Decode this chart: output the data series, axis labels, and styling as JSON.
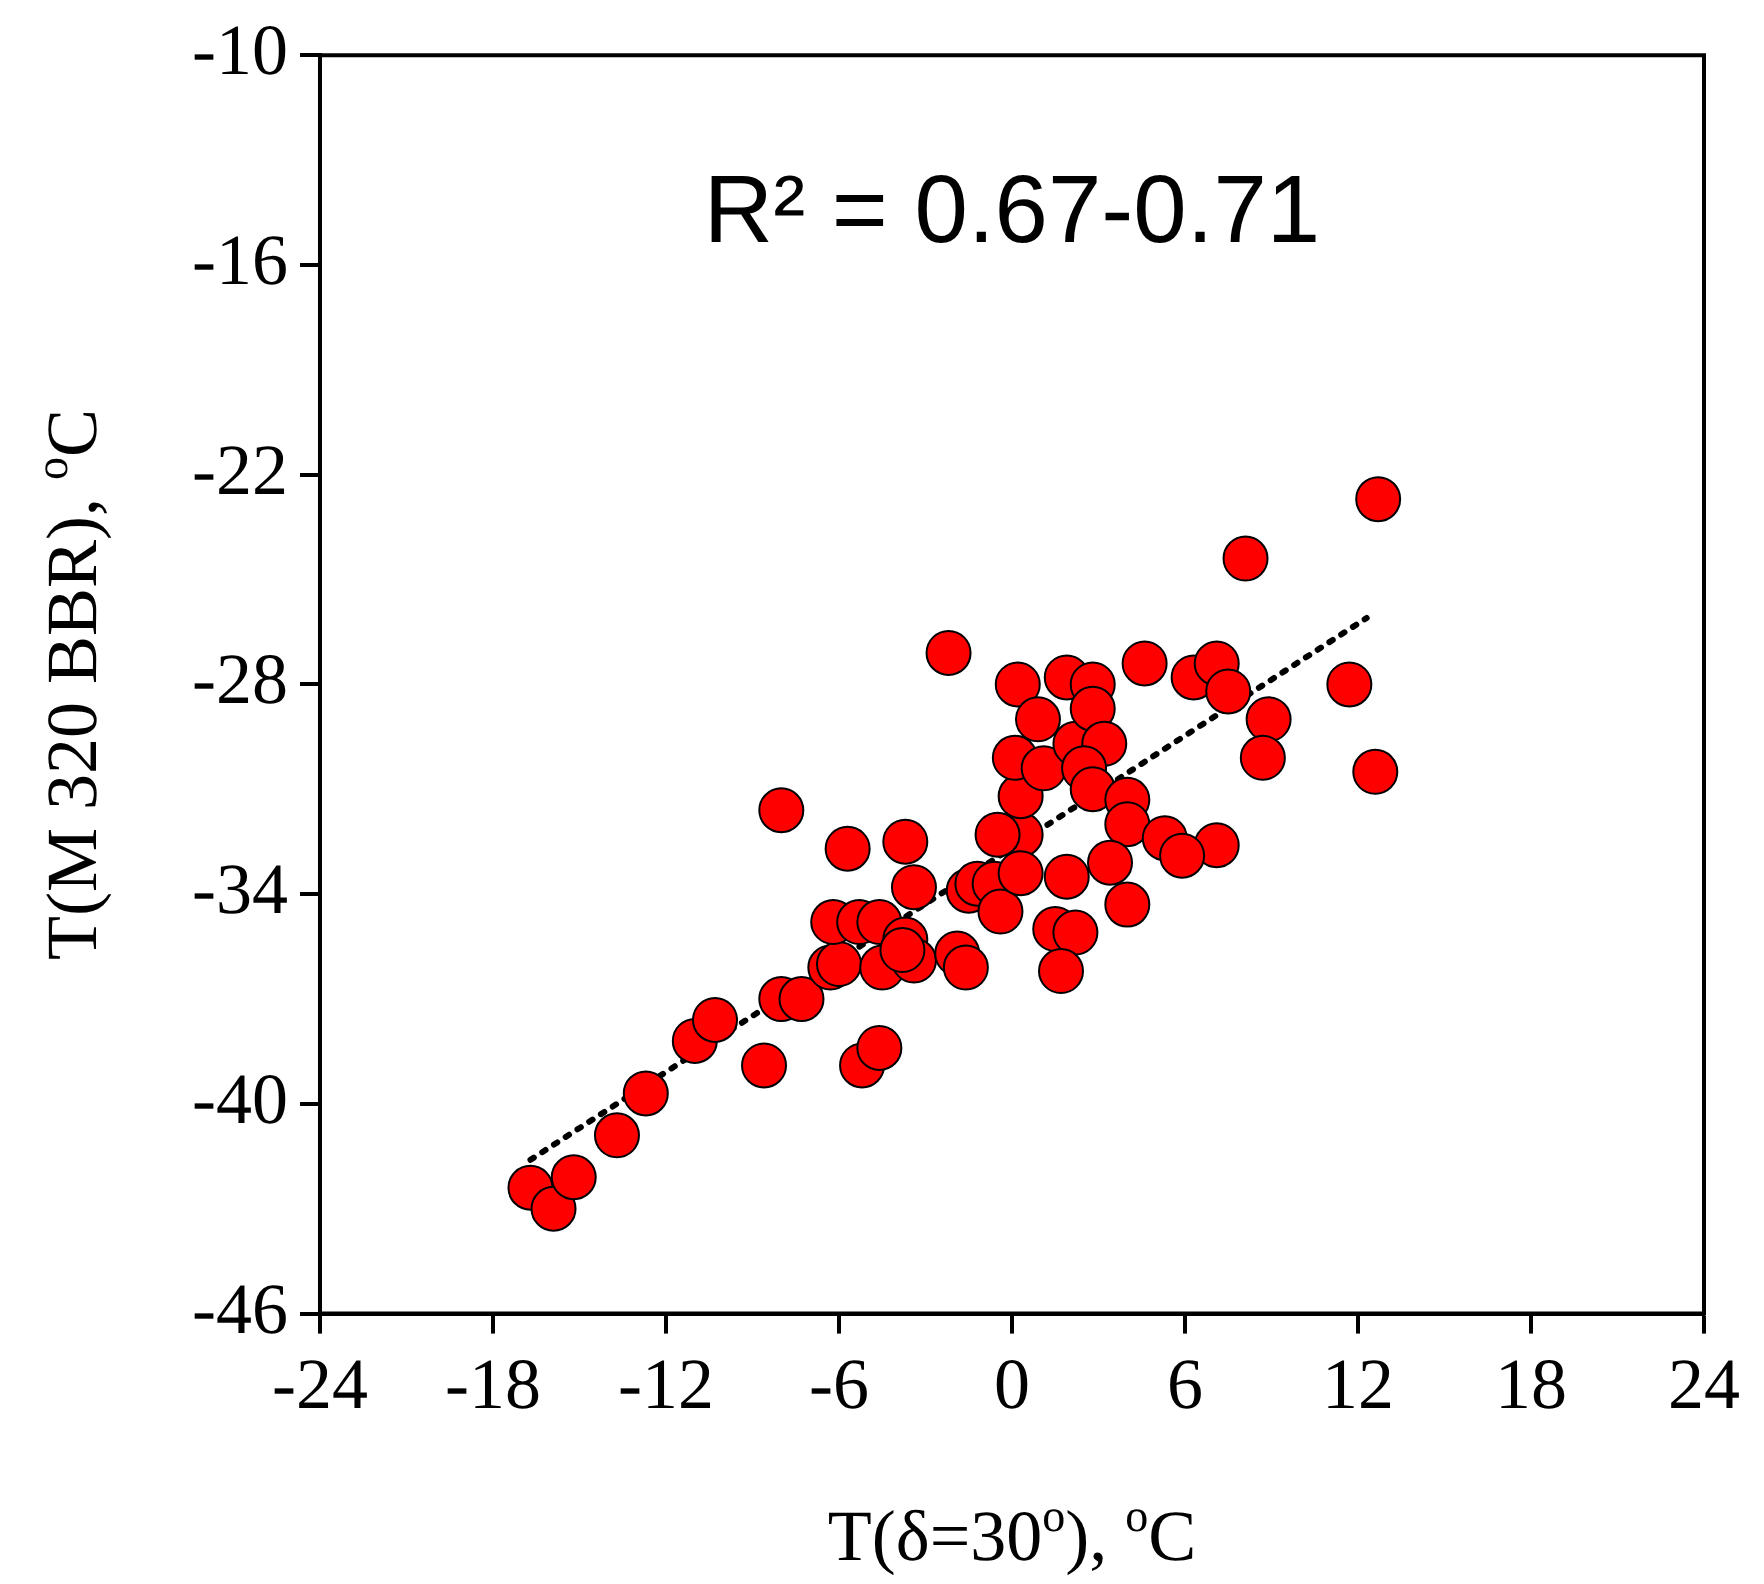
{
  "chart_data": {
    "type": "scatter",
    "xlabel": "T(δ=30$^{o}$), $^{o}$C",
    "ylabel": "T(M 320 BBR), $^{o}$C",
    "annotations": [
      "R² = 0.67-0.71"
    ],
    "xlim": [
      -24,
      24
    ],
    "xticks": [
      -24,
      -18,
      -12,
      -6,
      0,
      6,
      12,
      18,
      24
    ],
    "ylim": [
      -46,
      -10
    ],
    "yticks": [
      -46,
      -40,
      -34,
      -28,
      -22,
      -16,
      -10
    ],
    "grid": false,
    "legend": false,
    "marker": "circle",
    "series": [
      {
        "color": "#ff0000",
        "x": [
          -16.7,
          -15.9,
          -15.2,
          -13.7,
          -12.7,
          -11.0,
          -10.3,
          -8.6,
          -8.0,
          -8.0,
          -7.3,
          -6.3,
          -6.0,
          -6.2,
          -5.7,
          -5.3,
          -4.6,
          -4.5,
          -5.2,
          -4.6,
          -3.7,
          -3.4,
          -3.7,
          -3.4,
          -3.8,
          -2.2,
          -1.9,
          -1.6,
          -1.5,
          -1.2,
          -0.6,
          -0.4,
          0.3,
          -0.5,
          0.3,
          0.3,
          0.1,
          0.2,
          0.9,
          1.1,
          1.9,
          2.8,
          2.2,
          2.8,
          3.2,
          2.5,
          2.8,
          4.0,
          4.0,
          5.3,
          7.1,
          5.9,
          1.9,
          3.4,
          4.0,
          1.5,
          2.2,
          1.7,
          4.6,
          6.3,
          7.1,
          7.5,
          8.9,
          8.7,
          8.1,
          11.7,
          12.6,
          12.7
        ],
        "values": [
          -42.4,
          -43.0,
          -42.1,
          -40.9,
          -39.7,
          -38.2,
          -37.6,
          -38.9,
          -31.6,
          -37.0,
          -37.0,
          -36.1,
          -36.0,
          -34.8,
          -32.7,
          -34.8,
          -34.8,
          -36.1,
          -38.9,
          -38.4,
          -32.5,
          -33.8,
          -35.3,
          -35.9,
          -35.6,
          -27.1,
          -35.7,
          -36.1,
          -33.9,
          -33.7,
          -33.7,
          -34.5,
          -32.3,
          -32.3,
          -33.4,
          -31.2,
          -30.1,
          -28.0,
          -29.0,
          -30.4,
          -27.8,
          -28.0,
          -29.7,
          -28.7,
          -29.7,
          -30.4,
          -31.0,
          -31.3,
          -32.0,
          -32.4,
          -32.6,
          -32.9,
          -33.5,
          -33.1,
          -34.3,
          -35.0,
          -35.1,
          -36.2,
          -27.4,
          -27.8,
          -27.4,
          -28.2,
          -29.0,
          -30.1,
          -24.4,
          -28.0,
          -30.5,
          -22.7
        ]
      },
      {
        "type": "line",
        "color": "#000000",
        "marker": "none",
        "line_style": "dotted",
        "x": [
          -16.7,
          12.3
        ],
        "values": [
          -41.6,
          -26.1
        ]
      }
    ]
  }
}
